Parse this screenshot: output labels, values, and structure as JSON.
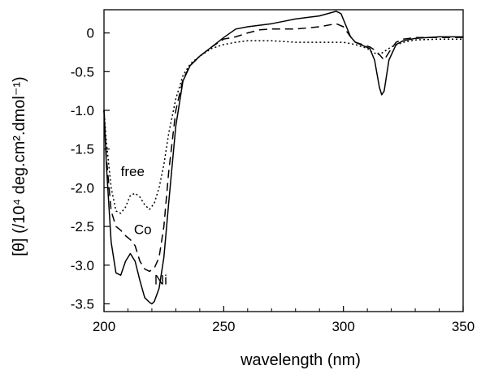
{
  "chart_data": {
    "type": "line",
    "xlabel": "wavelength (nm)",
    "ylabel": "[θ] (/10⁴ deg.cm².dmol⁻¹)",
    "xlim": [
      200,
      350
    ],
    "ylim": [
      -3.6,
      0.3
    ],
    "xticks": [
      "200",
      "250",
      "300",
      "350"
    ],
    "yticks": [
      "0",
      "-0.5",
      "-1.0",
      "-1.5",
      "-2.0",
      "-2.5",
      "-3.0",
      "-3.5"
    ],
    "series": [
      {
        "name": "free",
        "style": "dotted",
        "x": [
          200,
          201,
          203,
          205,
          207,
          209,
          211,
          213,
          215,
          217,
          219,
          221,
          223,
          225,
          227,
          230,
          233,
          236,
          240,
          245,
          250,
          255,
          260,
          265,
          270,
          280,
          290,
          300,
          305,
          310,
          312,
          315,
          317,
          320,
          325,
          330,
          340,
          350
        ],
        "y": [
          -1.0,
          -1.4,
          -2.0,
          -2.3,
          -2.33,
          -2.25,
          -2.1,
          -2.07,
          -2.12,
          -2.22,
          -2.28,
          -2.2,
          -2.0,
          -1.7,
          -1.3,
          -0.85,
          -0.55,
          -0.4,
          -0.3,
          -0.2,
          -0.15,
          -0.12,
          -0.1,
          -0.1,
          -0.1,
          -0.12,
          -0.12,
          -0.12,
          -0.15,
          -0.2,
          -0.25,
          -0.28,
          -0.24,
          -0.18,
          -0.12,
          -0.09,
          -0.08,
          -0.08
        ]
      },
      {
        "name": "Co",
        "style": "dashed",
        "x": [
          200,
          201,
          203,
          205,
          207,
          209,
          211,
          213,
          215,
          217,
          219,
          221,
          223,
          225,
          227,
          230,
          233,
          236,
          240,
          245,
          250,
          255,
          260,
          265,
          270,
          280,
          290,
          297,
          300,
          303,
          305,
          308,
          311,
          313,
          315,
          317,
          319,
          322,
          325,
          330,
          340,
          350
        ],
        "y": [
          -1.0,
          -1.6,
          -2.3,
          -2.5,
          -2.55,
          -2.62,
          -2.67,
          -2.75,
          -2.95,
          -3.05,
          -3.08,
          -3.04,
          -2.9,
          -2.5,
          -1.8,
          -1.0,
          -0.6,
          -0.42,
          -0.3,
          -0.18,
          -0.08,
          -0.05,
          0.0,
          0.04,
          0.05,
          0.05,
          0.08,
          0.12,
          0.08,
          -0.05,
          -0.12,
          -0.15,
          -0.18,
          -0.22,
          -0.28,
          -0.35,
          -0.25,
          -0.12,
          -0.08,
          -0.06,
          -0.06,
          -0.06
        ]
      },
      {
        "name": "Ni",
        "style": "solid",
        "x": [
          200,
          201,
          203,
          205,
          207,
          209,
          211,
          213,
          215,
          217,
          219,
          220,
          221,
          223,
          225,
          227,
          230,
          233,
          236,
          240,
          245,
          250,
          255,
          260,
          265,
          270,
          275,
          280,
          290,
          297,
          299,
          301,
          303,
          305,
          308,
          311,
          313,
          315,
          316,
          317,
          319,
          322,
          325,
          330,
          340,
          350
        ],
        "y": [
          -1.0,
          -1.7,
          -2.7,
          -3.1,
          -3.13,
          -2.95,
          -2.85,
          -2.95,
          -3.2,
          -3.42,
          -3.48,
          -3.5,
          -3.47,
          -3.3,
          -2.9,
          -2.2,
          -1.2,
          -0.62,
          -0.42,
          -0.3,
          -0.18,
          -0.06,
          0.05,
          0.08,
          0.1,
          0.12,
          0.15,
          0.18,
          0.22,
          0.28,
          0.25,
          0.1,
          -0.05,
          -0.12,
          -0.16,
          -0.2,
          -0.35,
          -0.7,
          -0.8,
          -0.75,
          -0.35,
          -0.15,
          -0.1,
          -0.07,
          -0.05,
          -0.05
        ]
      }
    ],
    "annotations": [
      {
        "text": "free",
        "x": 207,
        "y": -1.85
      },
      {
        "text": "Co",
        "x": 212.5,
        "y": -2.6
      },
      {
        "text": "Ni",
        "x": 221,
        "y": -3.25
      }
    ]
  }
}
